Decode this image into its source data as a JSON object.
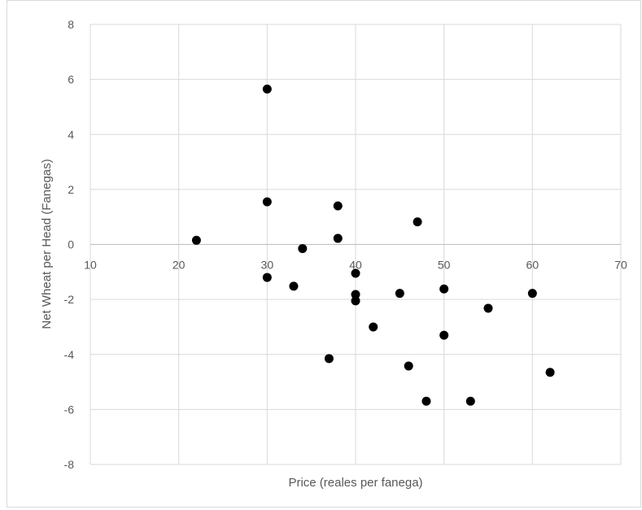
{
  "chart_data": {
    "type": "scatter",
    "title": "",
    "xlabel": "Price (reales per fanega)",
    "ylabel": "Net Wheat per Head (Fanegas)",
    "xlim": [
      10,
      70
    ],
    "ylim": [
      -8,
      8
    ],
    "x_ticks": [
      10,
      20,
      30,
      40,
      50,
      60,
      70
    ],
    "y_ticks": [
      -8,
      -6,
      -4,
      -2,
      0,
      2,
      4,
      6,
      8
    ],
    "grid": true,
    "marker_color": "#000000",
    "grid_color": "#d9d9d9",
    "points": [
      {
        "x": 30,
        "y": 5.65
      },
      {
        "x": 30,
        "y": 1.55
      },
      {
        "x": 22,
        "y": 0.15
      },
      {
        "x": 30,
        "y": -1.2
      },
      {
        "x": 33,
        "y": -1.52
      },
      {
        "x": 34,
        "y": -0.15
      },
      {
        "x": 38,
        "y": 1.4
      },
      {
        "x": 38,
        "y": 0.22
      },
      {
        "x": 40,
        "y": -1.05
      },
      {
        "x": 40,
        "y": -1.82
      },
      {
        "x": 40,
        "y": -2.05
      },
      {
        "x": 37,
        "y": -4.15
      },
      {
        "x": 42,
        "y": -3.0
      },
      {
        "x": 45,
        "y": -1.78
      },
      {
        "x": 46,
        "y": -4.42
      },
      {
        "x": 47,
        "y": 0.82
      },
      {
        "x": 48,
        "y": -5.7
      },
      {
        "x": 50,
        "y": -1.62
      },
      {
        "x": 50,
        "y": -3.3
      },
      {
        "x": 53,
        "y": -5.7
      },
      {
        "x": 55,
        "y": -2.32
      },
      {
        "x": 60,
        "y": -1.78
      },
      {
        "x": 62,
        "y": -4.65
      }
    ]
  }
}
